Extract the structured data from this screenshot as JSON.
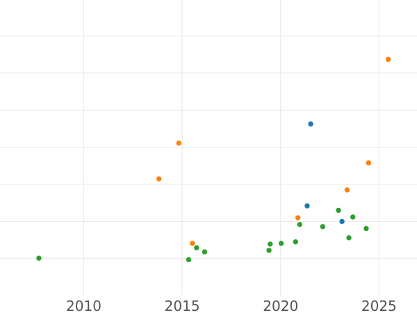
{
  "chart_data": {
    "type": "scatter",
    "title": "",
    "xlabel": "",
    "ylabel": "",
    "grid": true,
    "legend_position": "none",
    "x_ticks": [
      2010,
      2015,
      2020,
      2025
    ],
    "x_tick_labels": [
      "2010",
      "2015",
      "2020",
      "2025"
    ],
    "xlim": [
      2005.745,
      2026.93
    ],
    "ylim": [
      -1.468,
      6.97
    ],
    "y_gridline_values": [
      0,
      1,
      2,
      3,
      4,
      5,
      6
    ],
    "y_axis_labels_visible": false,
    "plot_bottom_value": -1,
    "y_unit_note": "y-axis unlabeled; values given in gridline units (evenly spaced gridlines, 0 = lowest visible gridline)",
    "series": [
      {
        "name": "blue",
        "color": "#1f77b4",
        "points": [
          {
            "x": 2021.35,
            "y": 1.42
          },
          {
            "x": 2021.53,
            "y": 3.63
          },
          {
            "x": 2023.12,
            "y": 1.0
          }
        ]
      },
      {
        "name": "orange",
        "color": "#ff7f0e",
        "points": [
          {
            "x": 2013.82,
            "y": 2.15
          },
          {
            "x": 2014.83,
            "y": 3.11
          },
          {
            "x": 2015.52,
            "y": 0.41
          },
          {
            "x": 2020.88,
            "y": 1.1
          },
          {
            "x": 2023.38,
            "y": 1.85
          },
          {
            "x": 2024.47,
            "y": 2.58
          },
          {
            "x": 2025.47,
            "y": 5.37
          }
        ]
      },
      {
        "name": "green",
        "color": "#2ca02c",
        "points": [
          {
            "x": 2007.72,
            "y": 0.01
          },
          {
            "x": 2015.33,
            "y": -0.03
          },
          {
            "x": 2015.73,
            "y": 0.29
          },
          {
            "x": 2016.14,
            "y": 0.18
          },
          {
            "x": 2019.41,
            "y": 0.22
          },
          {
            "x": 2019.47,
            "y": 0.39
          },
          {
            "x": 2020.03,
            "y": 0.41
          },
          {
            "x": 2020.76,
            "y": 0.45
          },
          {
            "x": 2020.97,
            "y": 0.92
          },
          {
            "x": 2022.14,
            "y": 0.86
          },
          {
            "x": 2022.94,
            "y": 1.3
          },
          {
            "x": 2023.47,
            "y": 0.56
          },
          {
            "x": 2023.67,
            "y": 1.12
          },
          {
            "x": 2024.35,
            "y": 0.81
          }
        ]
      }
    ],
    "marker": {
      "shape": "circle",
      "radius_px": 3.7
    }
  },
  "style": {
    "background_color": "#ffffff",
    "gridline_color": "#e8e8e8",
    "tick_label_color": "#545454"
  }
}
